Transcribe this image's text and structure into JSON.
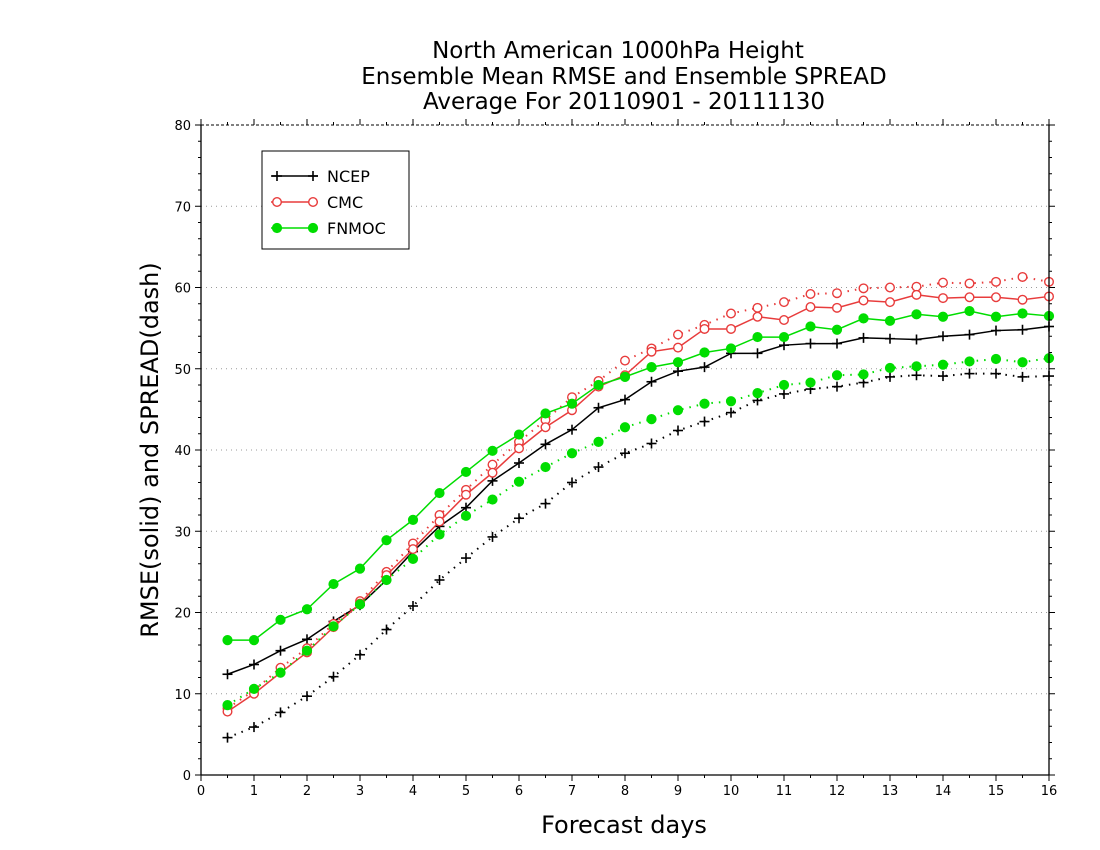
{
  "chart_data": {
    "type": "line",
    "title": [
      "North American 1000hPa Height",
      "Ensemble Mean RMSE and Ensemble SPREAD",
      "Average For 20110901 - 20111130"
    ],
    "xlabel": "Forecast days",
    "ylabel": "RMSE(solid) and SPREAD(dash)",
    "xlim": [
      0,
      16
    ],
    "ylim": [
      0,
      80
    ],
    "xticks": [
      0,
      1,
      2,
      3,
      4,
      5,
      6,
      7,
      8,
      9,
      10,
      11,
      12,
      13,
      14,
      15,
      16
    ],
    "yticks": [
      0,
      10,
      20,
      30,
      40,
      50,
      60,
      70,
      80
    ],
    "grid": "horizontal dotted",
    "legend_position": "top-left",
    "x": [
      0.5,
      1,
      1.5,
      2,
      2.5,
      3,
      3.5,
      4,
      4.5,
      5,
      5.5,
      6,
      6.5,
      7,
      7.5,
      8,
      8.5,
      9,
      9.5,
      10,
      10.5,
      11,
      11.5,
      12,
      12.5,
      13,
      13.5,
      14,
      14.5,
      15,
      15.5,
      16
    ],
    "series": [
      {
        "name": "NCEP",
        "color": "#000000",
        "marker": "plus",
        "rmse": [
          12.4,
          13.6,
          15.3,
          16.7,
          18.9,
          20.9,
          24.0,
          27.5,
          30.6,
          32.9,
          36.2,
          38.4,
          40.7,
          42.5,
          45.2,
          46.2,
          48.4,
          49.7,
          50.2,
          51.9,
          51.9,
          52.9,
          53.1,
          53.1,
          53.8,
          53.7,
          53.6,
          54.0,
          54.2,
          54.7,
          54.8,
          55.2
        ],
        "spread": [
          4.6,
          5.9,
          7.7,
          9.7,
          12.1,
          14.8,
          17.9,
          20.8,
          24.0,
          26.7,
          29.3,
          31.6,
          33.4,
          36.0,
          37.9,
          39.6,
          40.8,
          42.4,
          43.5,
          44.6,
          46.1,
          46.9,
          47.5,
          47.8,
          48.3,
          49.0,
          49.2,
          49.1,
          49.4,
          49.4,
          49.0,
          49.1
        ]
      },
      {
        "name": "CMC",
        "color": "#e83c3c",
        "marker": "open-circle",
        "rmse": [
          7.8,
          10.0,
          12.6,
          15.1,
          18.2,
          21.1,
          24.6,
          27.8,
          31.2,
          34.5,
          37.2,
          40.2,
          42.8,
          44.9,
          47.8,
          49.2,
          52.1,
          52.6,
          54.9,
          54.9,
          56.4,
          56.0,
          57.6,
          57.5,
          58.4,
          58.2,
          59.1,
          58.7,
          58.8,
          58.8,
          58.5,
          58.9
        ],
        "spread": [
          8.2,
          10.4,
          13.2,
          15.6,
          18.6,
          21.4,
          25.0,
          28.5,
          32.0,
          35.1,
          38.2,
          41.0,
          43.7,
          46.5,
          48.5,
          51.0,
          52.5,
          54.2,
          55.4,
          56.8,
          57.5,
          58.2,
          59.2,
          59.3,
          59.9,
          60.0,
          60.1,
          60.6,
          60.5,
          60.7,
          61.3,
          60.7
        ]
      },
      {
        "name": "FNMOC",
        "color": "#00dd00",
        "marker": "filled-circle",
        "rmse": [
          16.6,
          16.6,
          19.1,
          20.4,
          23.5,
          25.4,
          28.9,
          31.4,
          34.7,
          37.3,
          39.9,
          41.9,
          44.5,
          45.7,
          48.0,
          49.0,
          50.2,
          50.8,
          52.0,
          52.5,
          53.9,
          53.9,
          55.2,
          54.8,
          56.2,
          55.9,
          56.7,
          56.4,
          57.1,
          56.4,
          56.8,
          56.5
        ],
        "spread": [
          8.6,
          10.6,
          12.6,
          15.3,
          18.3,
          21.0,
          24.0,
          26.6,
          29.6,
          31.9,
          33.9,
          36.1,
          37.9,
          39.6,
          41.0,
          42.8,
          43.8,
          44.9,
          45.7,
          46.0,
          47.0,
          48.0,
          48.3,
          49.2,
          49.3,
          50.1,
          50.3,
          50.5,
          50.9,
          51.2,
          50.8,
          51.3
        ]
      }
    ]
  }
}
